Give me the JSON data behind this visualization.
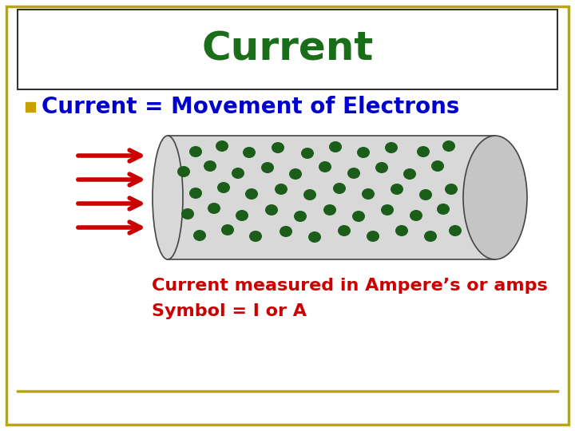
{
  "title": "Current",
  "title_color": "#1a6e1a",
  "title_fontsize": 36,
  "title_font": "Comic Sans MS",
  "bg_color": "#ffffff",
  "border_color": "#b8a800",
  "bullet_color": "#c8a000",
  "bullet_text": "Current = Movement of Electrons",
  "bullet_text_color": "#0000cc",
  "bullet_fontsize": 20,
  "line1": "Current measured in Ampere’s or amps",
  "line2": "Symbol = I or A",
  "lines_color": "#cc0000",
  "lines_fontsize": 16,
  "arrow_color": "#cc0000",
  "electron_color": "#1a5e1a",
  "tube_fill": "#d8d8d8",
  "tube_border": "#444444",
  "bottom_line_color": "#b8a800",
  "outer_border_color": "#b8a800"
}
